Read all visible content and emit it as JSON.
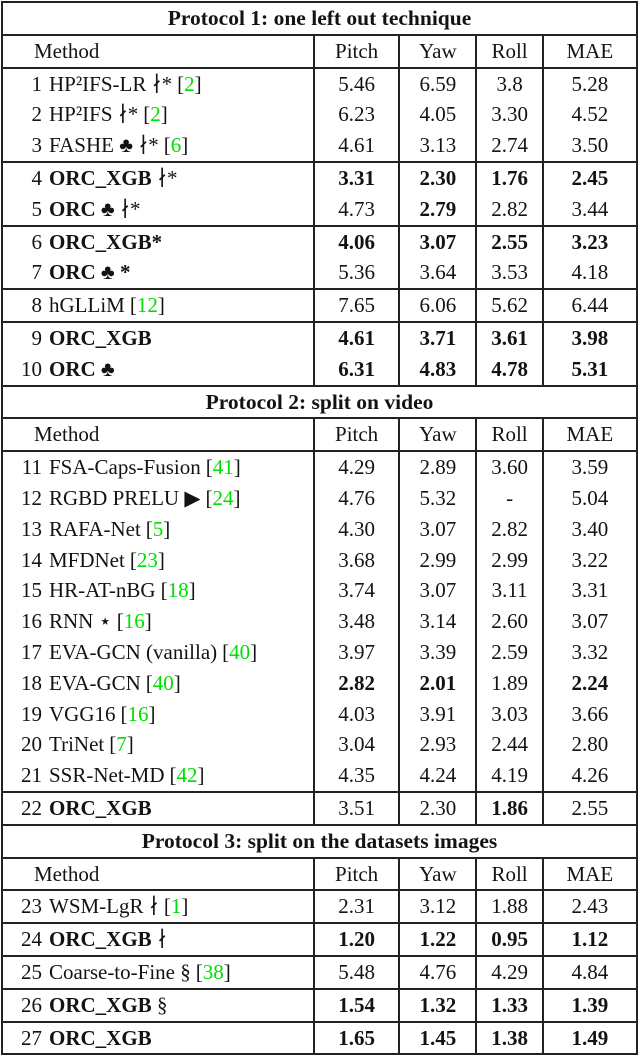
{
  "colors": {
    "citation_green": "#00dd00",
    "border": "#222222",
    "text": "#131313"
  },
  "columns": [
    "Method",
    "Pitch",
    "Yaw",
    "Roll",
    "MAE"
  ],
  "sections": [
    {
      "title": "Protocol 1: one left out technique",
      "groups": [
        {
          "rows": [
            {
              "num": "1",
              "method": "HP²IFS-LR ∤*",
              "cite": "2",
              "bold": false,
              "values": [
                "5.46",
                "6.59",
                "3.8",
                "5.28"
              ],
              "bold_values": [
                false,
                false,
                false,
                false
              ]
            },
            {
              "num": "2",
              "method": "HP²IFS ∤*",
              "cite": "2",
              "bold": false,
              "values": [
                "6.23",
                "4.05",
                "3.30",
                "4.52"
              ],
              "bold_values": [
                false,
                false,
                false,
                false
              ]
            },
            {
              "num": "3",
              "method": "FASHE ♣ ∤*",
              "cite": "6",
              "bold": false,
              "values": [
                "4.61",
                "3.13",
                "2.74",
                "3.50"
              ],
              "bold_values": [
                false,
                false,
                false,
                false
              ]
            }
          ]
        },
        {
          "rows": [
            {
              "num": "4",
              "method": "ORC_XGB",
              "suffix": " ∤*",
              "bold": true,
              "values": [
                "3.31",
                "2.30",
                "1.76",
                "2.45"
              ],
              "bold_values": [
                true,
                true,
                true,
                true
              ]
            },
            {
              "num": "5",
              "method": "ORC ♣",
              "suffix": " ∤*",
              "bold": true,
              "values": [
                "4.73",
                "2.79",
                "2.82",
                "3.44"
              ],
              "bold_values": [
                false,
                true,
                false,
                false
              ]
            }
          ]
        },
        {
          "rows": [
            {
              "num": "6",
              "method": "ORC_XGB*",
              "bold": true,
              "values": [
                "4.06",
                "3.07",
                "2.55",
                "3.23"
              ],
              "bold_values": [
                true,
                true,
                true,
                true
              ]
            },
            {
              "num": "7",
              "method": "ORC ♣ *",
              "bold": true,
              "values": [
                "5.36",
                "3.64",
                "3.53",
                "4.18"
              ],
              "bold_values": [
                false,
                false,
                false,
                false
              ]
            }
          ]
        },
        {
          "rows": [
            {
              "num": "8",
              "method": "hGLLiM",
              "cite": "12",
              "bold": false,
              "values": [
                "7.65",
                "6.06",
                "5.62",
                "6.44"
              ],
              "bold_values": [
                false,
                false,
                false,
                false
              ]
            }
          ]
        },
        {
          "rows": [
            {
              "num": "9",
              "method": "ORC_XGB",
              "bold": true,
              "values": [
                "4.61",
                "3.71",
                "3.61",
                "3.98"
              ],
              "bold_values": [
                true,
                true,
                true,
                true
              ]
            },
            {
              "num": "10",
              "method": "ORC ♣",
              "bold": true,
              "values": [
                "6.31",
                "4.83",
                "4.78",
                "5.31"
              ],
              "bold_values": [
                true,
                true,
                true,
                true
              ]
            }
          ]
        }
      ]
    },
    {
      "title": "Protocol 2: split on video",
      "groups": [
        {
          "rows": [
            {
              "num": "11",
              "method": "FSA-Caps-Fusion",
              "cite": "41",
              "bold": false,
              "values": [
                "4.29",
                "2.89",
                "3.60",
                "3.59"
              ],
              "bold_values": [
                false,
                false,
                false,
                false
              ]
            },
            {
              "num": "12",
              "method": "RGBD PRELU ▶",
              "cite": "24",
              "bold": false,
              "values": [
                "4.76",
                "5.32",
                "-",
                "5.04"
              ],
              "bold_values": [
                false,
                false,
                false,
                false
              ]
            },
            {
              "num": "13",
              "method": "RAFA-Net",
              "cite": "5",
              "bold": false,
              "values": [
                "4.30",
                "3.07",
                "2.82",
                "3.40"
              ],
              "bold_values": [
                false,
                false,
                false,
                false
              ]
            },
            {
              "num": "14",
              "method": "MFDNet",
              "cite": "23",
              "bold": false,
              "values": [
                "3.68",
                "2.99",
                "2.99",
                "3.22"
              ],
              "bold_values": [
                false,
                false,
                false,
                false
              ]
            },
            {
              "num": "15",
              "method": "HR-AT-nBG",
              "cite": "18",
              "bold": false,
              "values": [
                "3.74",
                "3.07",
                "3.11",
                "3.31"
              ],
              "bold_values": [
                false,
                false,
                false,
                false
              ]
            },
            {
              "num": "16",
              "method": "RNN ⋆",
              "cite": "16",
              "bold": false,
              "values": [
                "3.48",
                "3.14",
                "2.60",
                "3.07"
              ],
              "bold_values": [
                false,
                false,
                false,
                false
              ]
            },
            {
              "num": "17",
              "method": "EVA-GCN (vanilla)",
              "cite": "40",
              "bold": false,
              "values": [
                "3.97",
                "3.39",
                "2.59",
                "3.32"
              ],
              "bold_values": [
                false,
                false,
                false,
                false
              ]
            },
            {
              "num": "18",
              "method": "EVA-GCN",
              "cite": "40",
              "bold": false,
              "values": [
                "2.82",
                "2.01",
                "1.89",
                "2.24"
              ],
              "bold_values": [
                true,
                true,
                false,
                true
              ]
            },
            {
              "num": "19",
              "method": "VGG16",
              "cite": "16",
              "bold": false,
              "values": [
                "4.03",
                "3.91",
                "3.03",
                "3.66"
              ],
              "bold_values": [
                false,
                false,
                false,
                false
              ]
            },
            {
              "num": "20",
              "method": "TriNet",
              "cite": "7",
              "bold": false,
              "values": [
                "3.04",
                "2.93",
                "2.44",
                "2.80"
              ],
              "bold_values": [
                false,
                false,
                false,
                false
              ]
            },
            {
              "num": "21",
              "method": "SSR-Net-MD",
              "cite": "42",
              "bold": false,
              "values": [
                "4.35",
                "4.24",
                "4.19",
                "4.26"
              ],
              "bold_values": [
                false,
                false,
                false,
                false
              ]
            }
          ]
        },
        {
          "rows": [
            {
              "num": "22",
              "method": "ORC_XGB",
              "bold": true,
              "values": [
                "3.51",
                "2.30",
                "1.86",
                "2.55"
              ],
              "bold_values": [
                false,
                false,
                true,
                false
              ]
            }
          ]
        }
      ]
    },
    {
      "title": "Protocol 3: split on the datasets images",
      "groups": [
        {
          "rows": [
            {
              "num": "23",
              "method": "WSM-LgR ∤",
              "cite": "1",
              "bold": false,
              "values": [
                "2.31",
                "3.12",
                "1.88",
                "2.43"
              ],
              "bold_values": [
                false,
                false,
                false,
                false
              ]
            }
          ]
        },
        {
          "rows": [
            {
              "num": "24",
              "method": "ORC_XGB",
              "suffix": " ∤",
              "bold": true,
              "values": [
                "1.20",
                "1.22",
                "0.95",
                "1.12"
              ],
              "bold_values": [
                true,
                true,
                true,
                true
              ]
            }
          ]
        },
        {
          "rows": [
            {
              "num": "25",
              "method": "Coarse-to-Fine §",
              "cite": "38",
              "bold": false,
              "values": [
                "5.48",
                "4.76",
                "4.29",
                "4.84"
              ],
              "bold_values": [
                false,
                false,
                false,
                false
              ]
            }
          ]
        },
        {
          "rows": [
            {
              "num": "26",
              "method": "ORC_XGB",
              "suffix": " §",
              "bold": true,
              "values": [
                "1.54",
                "1.32",
                "1.33",
                "1.39"
              ],
              "bold_values": [
                true,
                true,
                true,
                true
              ]
            }
          ]
        },
        {
          "rows": [
            {
              "num": "27",
              "method": "ORC_XGB",
              "bold": true,
              "values": [
                "1.65",
                "1.45",
                "1.38",
                "1.49"
              ],
              "bold_values": [
                true,
                true,
                true,
                true
              ]
            }
          ]
        }
      ]
    }
  ]
}
